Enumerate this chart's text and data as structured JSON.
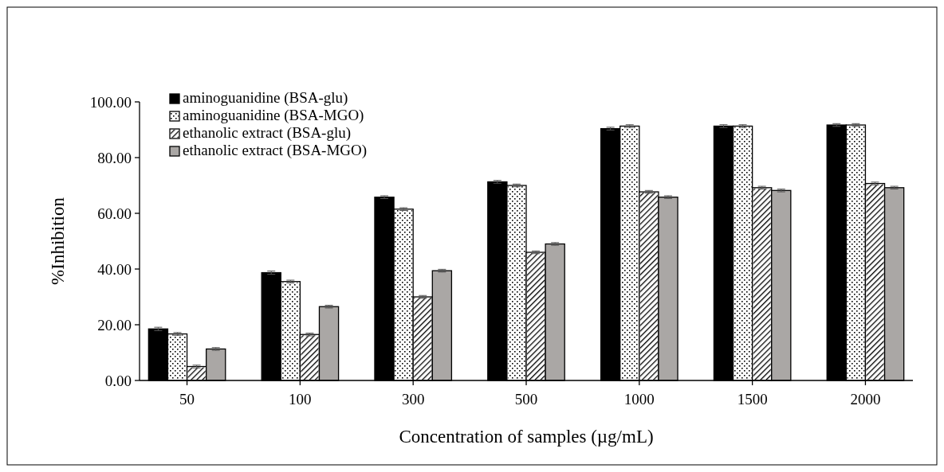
{
  "chart_data": {
    "type": "bar",
    "xlabel": "Concentration  of samples  (µg/mL)",
    "ylabel": "%Inhibition",
    "categories": [
      "50",
      "100",
      "300",
      "500",
      "1000",
      "1500",
      "2000"
    ],
    "series": [
      {
        "name": "aminoguanidine (BSA-glu)",
        "color": "#000000",
        "values": [
          18.5,
          38.7,
          65.8,
          71.3,
          90.4,
          91.3,
          91.7
        ],
        "errors": [
          0.6,
          0.6,
          0.5,
          0.5,
          0.5,
          0.5,
          0.5
        ]
      },
      {
        "name": "aminoguanidine (BSA-MGO)",
        "color": "#ffffff",
        "values": [
          16.7,
          35.5,
          61.5,
          70.0,
          91.3,
          91.3,
          91.7
        ],
        "errors": [
          0.5,
          0.5,
          0.5,
          0.5,
          0.5,
          0.5,
          0.5
        ]
      },
      {
        "name": "ethanolic extract (BSA-glu)",
        "color": "#ffffff",
        "values": [
          5.0,
          16.5,
          30.0,
          46.0,
          67.7,
          69.2,
          70.7
        ],
        "errors": [
          0.5,
          0.5,
          0.5,
          0.5,
          0.5,
          0.5,
          0.5
        ]
      },
      {
        "name": "ethanolic extract (BSA-MGO)",
        "color": "#aaa7a5",
        "values": [
          11.3,
          26.5,
          39.4,
          49.0,
          65.8,
          68.2,
          69.2
        ],
        "errors": [
          0.5,
          0.5,
          0.5,
          0.5,
          0.5,
          0.5,
          0.5
        ]
      }
    ],
    "ylim": [
      0,
      100
    ],
    "yticks": [
      {
        "value": 0,
        "label": "0.00"
      },
      {
        "value": 20,
        "label": "20.00"
      },
      {
        "value": 40,
        "label": "40.00"
      },
      {
        "value": 60,
        "label": "60.00"
      },
      {
        "value": 80,
        "label": "80.00"
      },
      {
        "value": 100,
        "label": "100.00"
      }
    ],
    "grid": false,
    "legend": "top left"
  }
}
